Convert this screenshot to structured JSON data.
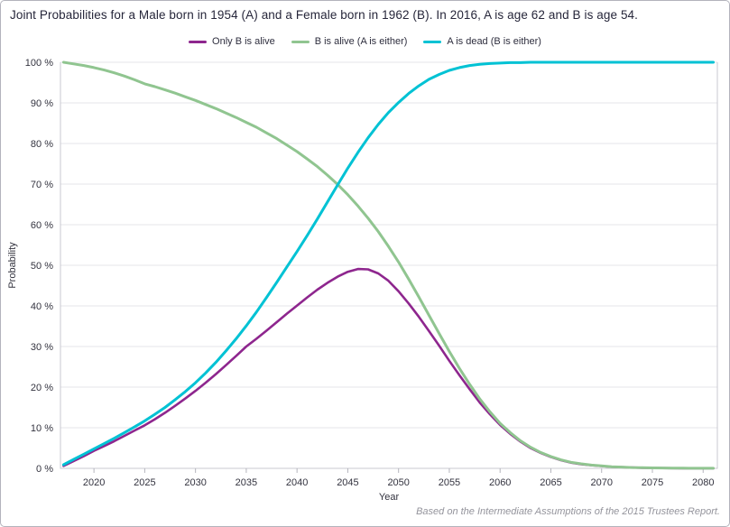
{
  "header": {
    "title": "Joint Probabilities for a Male born in 1954 (A) and a Female born in 1962 (B). In 2016, A is age 62 and B is age 54."
  },
  "footer": {
    "text": "Based on the Intermediate Assumptions of the 2015 Trustees Report."
  },
  "colors": {
    "purple_series": "#8e268e",
    "green_series": "#90c590",
    "cyan_series": "#00c2d4",
    "gridline": "#e4e4e8",
    "axis_border": "#c9c9d0",
    "tick_mark": "#b5b5bd",
    "tick_label": "#33333f",
    "title_text": "#26263a",
    "footer_text": "#94949c"
  },
  "chart_data": {
    "type": "line",
    "title": "Joint Probabilities for a Male born in 1954 (A) and a Female born in 1962 (B). In 2016, A is age 62 and B is age 54.",
    "xlabel": "Year",
    "ylabel": "Probability",
    "xlim": [
      2016.7,
      2081.4
    ],
    "ylim": [
      0,
      100
    ],
    "grid": "horizontal",
    "legend_position": "top-center",
    "xticks": [
      2020,
      2025,
      2030,
      2035,
      2040,
      2045,
      2050,
      2055,
      2060,
      2065,
      2070,
      2075,
      2080
    ],
    "ytick_values": [
      0,
      10,
      20,
      30,
      40,
      50,
      60,
      70,
      80,
      90,
      100
    ],
    "ytick_labels": [
      "0 %",
      "10 %",
      "20 %",
      "30 %",
      "40 %",
      "50 %",
      "60 %",
      "70 %",
      "80 %",
      "90 %",
      "100 %"
    ],
    "x": [
      2017,
      2018,
      2019,
      2020,
      2021,
      2022,
      2023,
      2024,
      2025,
      2026,
      2027,
      2028,
      2029,
      2030,
      2031,
      2032,
      2033,
      2034,
      2035,
      2036,
      2037,
      2038,
      2039,
      2040,
      2041,
      2042,
      2043,
      2044,
      2045,
      2046,
      2047,
      2048,
      2049,
      2050,
      2051,
      2052,
      2053,
      2054,
      2055,
      2056,
      2057,
      2058,
      2059,
      2060,
      2061,
      2062,
      2063,
      2064,
      2065,
      2066,
      2067,
      2068,
      2069,
      2070,
      2071,
      2072,
      2073,
      2074,
      2075,
      2076,
      2077,
      2078,
      2079,
      2080,
      2081
    ],
    "series": [
      {
        "name": "Only B is alive",
        "color": "#8e268e",
        "width": 2.6,
        "values": [
          0.6,
          1.8,
          3.0,
          4.3,
          5.5,
          6.7,
          8.0,
          9.3,
          10.6,
          12.1,
          13.7,
          15.4,
          17.2,
          19.1,
          21.1,
          23.2,
          25.4,
          27.7,
          30.0,
          31.9,
          33.9,
          36.0,
          38.1,
          40.1,
          42.1,
          44.0,
          45.7,
          47.2,
          48.4,
          49.1,
          49.0,
          48.0,
          46.2,
          43.6,
          40.6,
          37.3,
          33.8,
          30.2,
          26.5,
          22.9,
          19.5,
          16.2,
          13.3,
          10.7,
          8.5,
          6.6,
          5.0,
          3.8,
          2.8,
          2.0,
          1.4,
          1.0,
          0.75,
          0.55,
          0.38,
          0.28,
          0.19,
          0.13,
          0.09,
          0.06,
          0.04,
          0.03,
          0.02,
          0.01,
          0.01
        ]
      },
      {
        "name": "B is alive (A is either)",
        "color": "#90c590",
        "width": 3,
        "values": [
          100,
          99.6,
          99.2,
          98.7,
          98.1,
          97.4,
          96.6,
          95.7,
          94.7,
          94.0,
          93.2,
          92.4,
          91.5,
          90.6,
          89.6,
          88.6,
          87.5,
          86.4,
          85.2,
          84.0,
          82.6,
          81.2,
          79.6,
          78.0,
          76.2,
          74.3,
          72.2,
          69.9,
          67.4,
          64.6,
          61.6,
          58.3,
          54.7,
          50.8,
          46.6,
          42.2,
          37.7,
          33.2,
          28.8,
          24.6,
          20.7,
          17.1,
          13.9,
          11.1,
          8.8,
          6.8,
          5.2,
          3.9,
          2.9,
          2.1,
          1.5,
          1.1,
          0.8,
          0.6,
          0.4,
          0.3,
          0.2,
          0.15,
          0.1,
          0.08,
          0.06,
          0.04,
          0.03,
          0.02,
          0.02
        ]
      },
      {
        "name": "A is dead (B is either)",
        "color": "#00c2d4",
        "width": 3,
        "values": [
          0.9,
          2.2,
          3.5,
          4.8,
          6.1,
          7.4,
          8.8,
          10.2,
          11.7,
          13.3,
          15.0,
          16.9,
          18.9,
          21.1,
          23.5,
          26.1,
          28.9,
          31.9,
          35.1,
          38.5,
          42.1,
          45.8,
          49.6,
          53.4,
          57.3,
          61.4,
          65.6,
          69.8,
          73.9,
          77.8,
          81.4,
          84.7,
          87.6,
          90.1,
          92.3,
          94.2,
          95.8,
          97.0,
          98.0,
          98.7,
          99.2,
          99.5,
          99.7,
          99.8,
          99.9,
          99.9,
          100,
          100,
          100,
          100,
          100,
          100,
          100,
          100,
          100,
          100,
          100,
          100,
          100,
          100,
          100,
          100,
          100,
          100,
          100
        ]
      }
    ]
  }
}
